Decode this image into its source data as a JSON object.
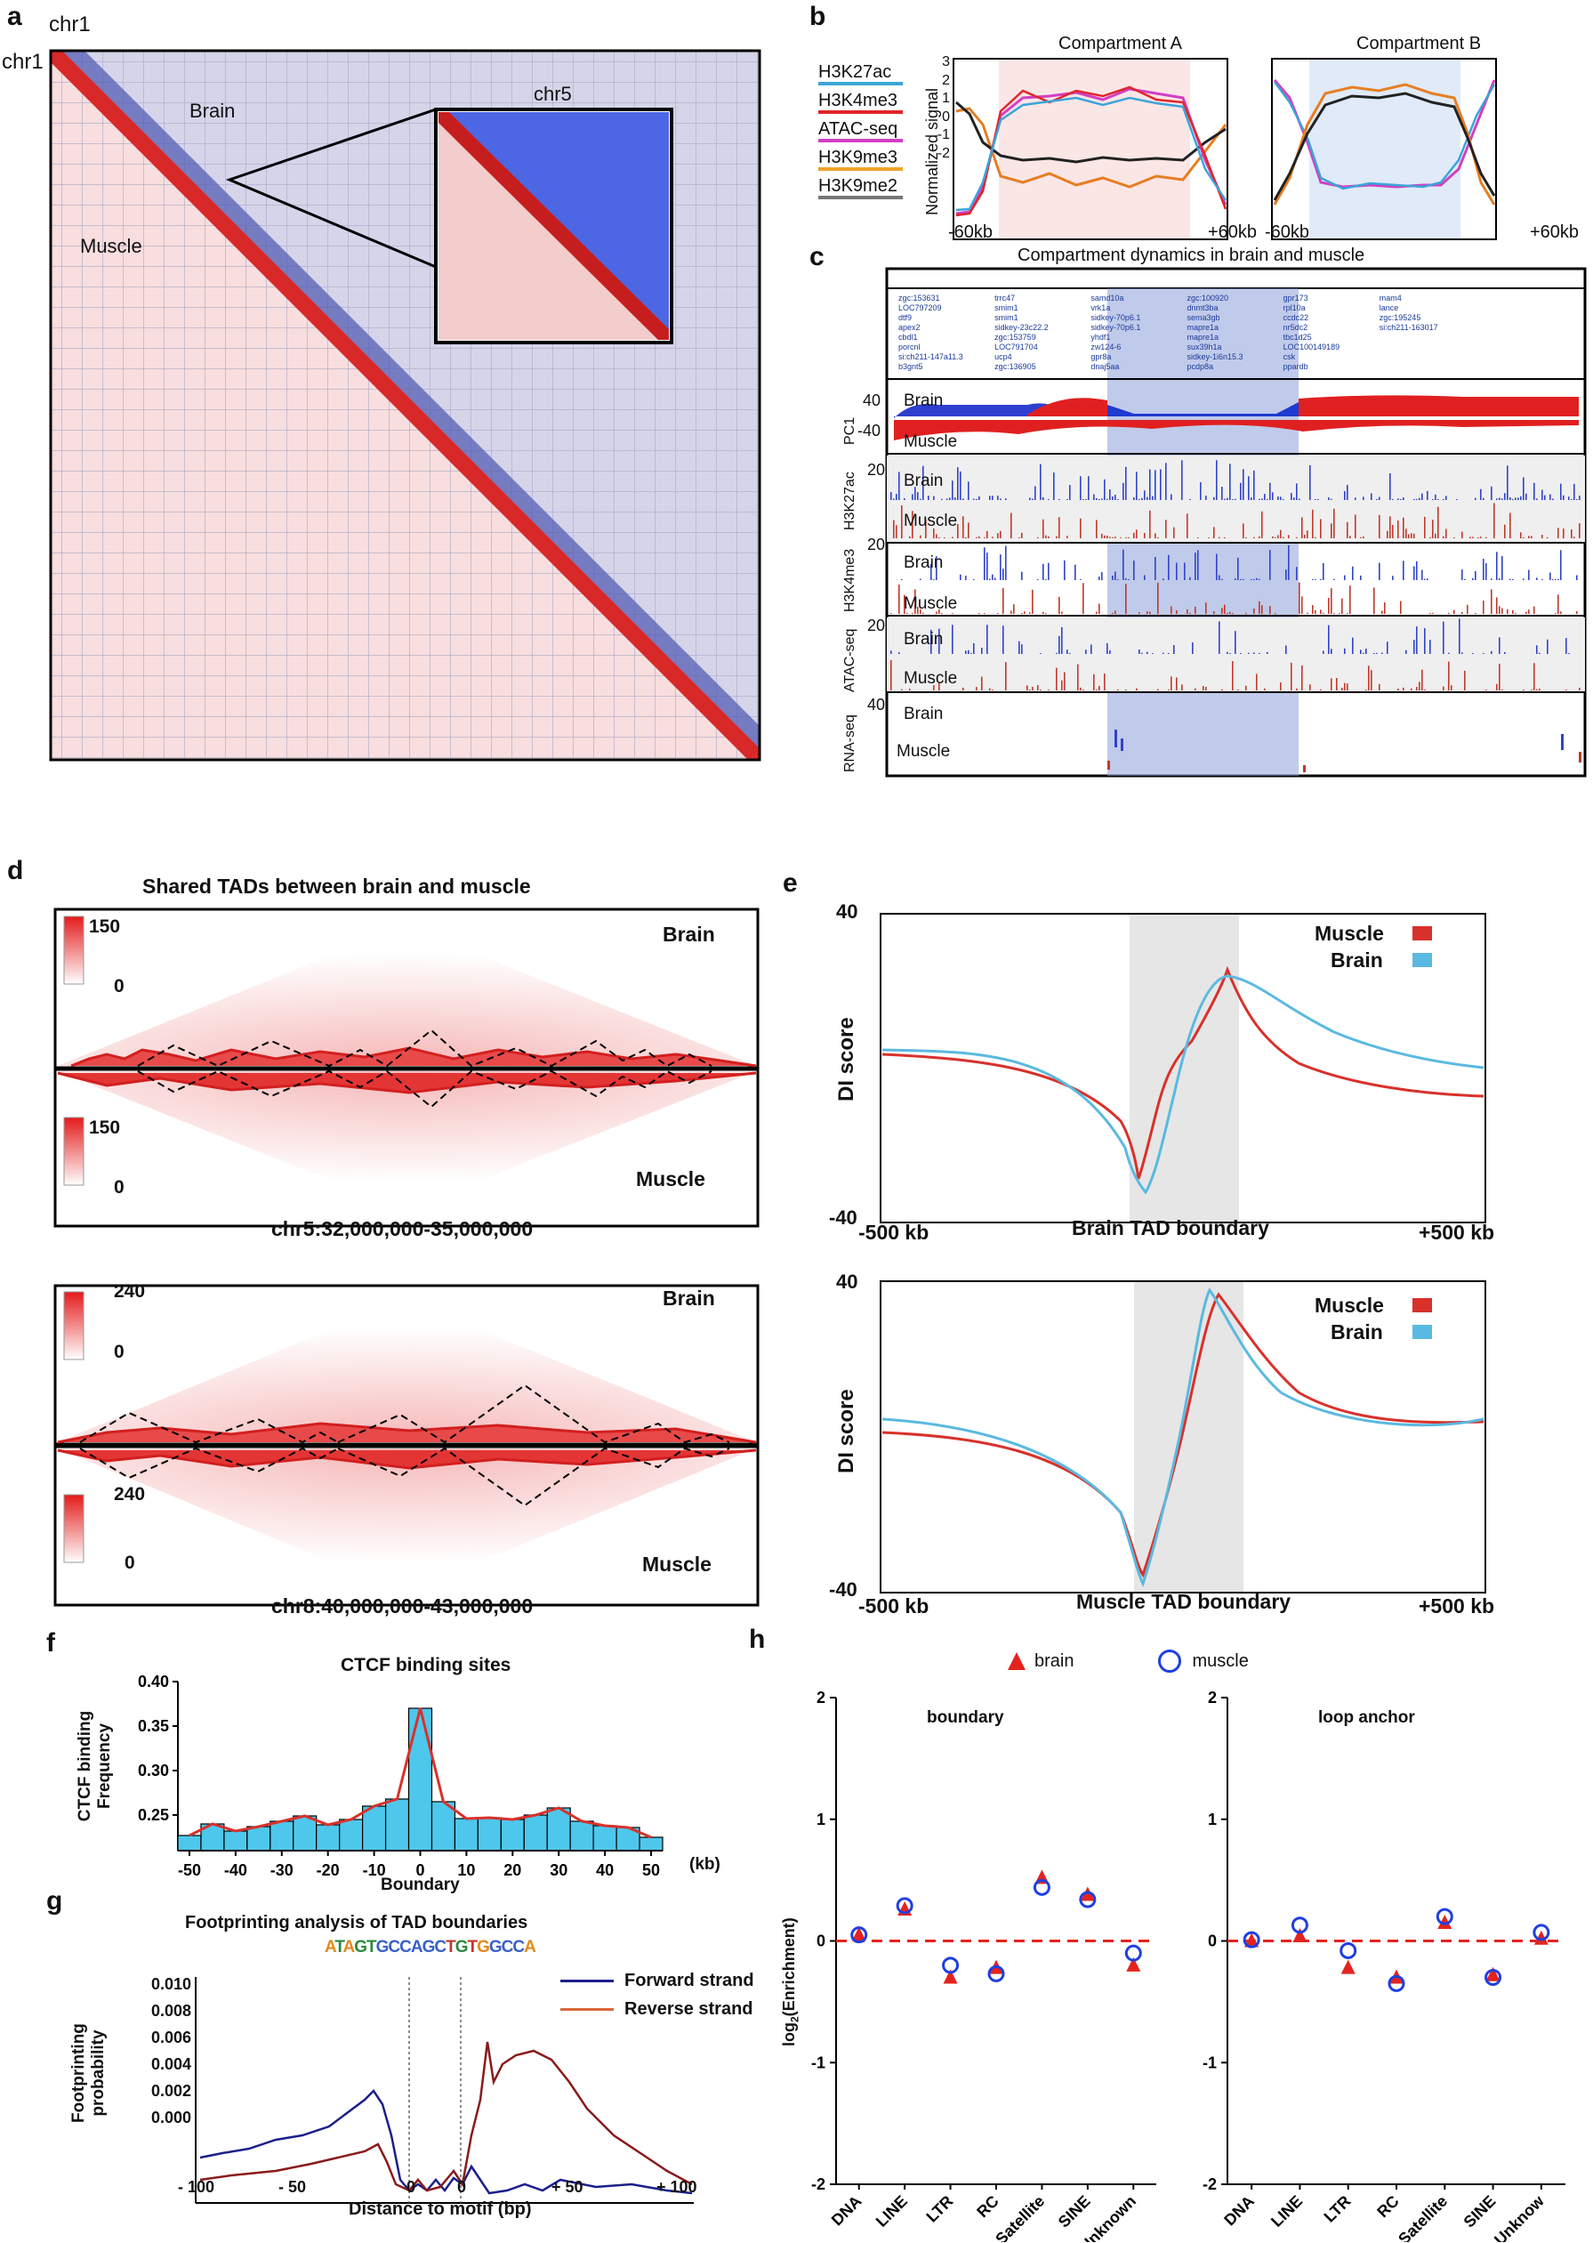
{
  "panels": {
    "a": {
      "label": "a",
      "chr_top": "chr1",
      "chr_left": "chr1",
      "brain": "Brain",
      "muscle": "Muscle",
      "inset": "chr5"
    },
    "b": {
      "label": "b",
      "compA": "Compartment A",
      "compB": "Compartment B",
      "ylabel": "Normalized signal",
      "yticks": [
        "3",
        "2",
        "1",
        "0",
        "-1",
        "-2"
      ],
      "xleft": "-60kb",
      "xright": "+60kb",
      "legend": [
        {
          "name": "H3K27ac",
          "color": "#3aa5d8"
        },
        {
          "name": "H3K4me3",
          "color": "#e0262b"
        },
        {
          "name": "ATAC-seq",
          "color": "#d23fc3"
        },
        {
          "name": "H3K9me3",
          "color": "#f0a32c"
        },
        {
          "name": "H3K9me2",
          "color": "#777777"
        }
      ]
    },
    "c": {
      "label": "c",
      "title": "Compartment dynamics in brain and muscle",
      "tracks": [
        {
          "ylabel": "PC1",
          "top": "40",
          "bottom": "-40",
          "brain": "Brain",
          "muscle": "Muscle"
        },
        {
          "ylabel": "H3K27ac",
          "top": "20",
          "brain": "Brain",
          "muscle": "Muscle"
        },
        {
          "ylabel": "H3K4me3",
          "top": "20",
          "brain": "Brain",
          "muscle": "Muscle"
        },
        {
          "ylabel": "ATAC-seq",
          "top": "20",
          "brain": "Brain",
          "muscle": "Muscle"
        },
        {
          "ylabel": "RNA-seq",
          "top": "40",
          "brain": "Brain",
          "muscle": "Muscle"
        }
      ],
      "genes": [
        "zgc:153631",
        "LOC797209",
        "dtf9",
        "apex2",
        "cbdl1",
        "porcnl",
        "si:ch211-147a11.3",
        "b3gnt5",
        "trrc47",
        "smim1",
        "smim1",
        "sidkey-23c22.2",
        "zgc:153759",
        "LOC791704",
        "ucp4",
        "zgc:136905",
        "samd10a",
        "vrk1a",
        "sidkey-70p6.1",
        "sidkey-70p6.1",
        "yhdf1",
        "zw124-6",
        "gpr8a",
        "dnaj5aa",
        "zgc:100920",
        "dnmt3ba",
        "sema3gb",
        "mapre1a",
        "mapre1a",
        "sux39h1a",
        "sidkey-1i6n15.3",
        "pcdp8a",
        "gpr173",
        "rpl10a",
        "ccdc22",
        "nr5dc2",
        "tbc1d25",
        "LOC100149189",
        "csk",
        "ppardb",
        "mam4",
        "lance",
        "zgc:195245",
        "si:ch211-163017"
      ]
    },
    "d": {
      "label": "d",
      "title": "Shared TADs between brain and muscle",
      "maps": [
        {
          "region": "chr5:32,000,000-35,000,000",
          "max": "150",
          "min": "0",
          "brain": "Brain",
          "muscle": "Muscle"
        },
        {
          "region": "chr8:40,000,000-43,000,000",
          "max": "240",
          "min": "0",
          "brain": "Brain",
          "muscle": "Muscle"
        }
      ]
    },
    "e": {
      "label": "e",
      "ylabel": "DI score",
      "legend": [
        {
          "name": "Muscle",
          "color": "#d8312b"
        },
        {
          "name": "Brain",
          "color": "#5ab9e0"
        }
      ],
      "plots": [
        {
          "xlabel": "Brain TAD boundary",
          "xleft": "-500 kb",
          "xright": "+500 kb",
          "ytop": "40",
          "ybottom": "-40"
        },
        {
          "xlabel": "Muscle TAD boundary",
          "xleft": "-500 kb",
          "xright": "+500 kb",
          "ytop": "40",
          "ybottom": "-40"
        }
      ]
    },
    "f": {
      "label": "f",
      "title": "CTCF binding sites",
      "ylabel1": "CTCF binding",
      "ylabel2": "Frequency",
      "xlabel": "Boundary",
      "xunit": "(kb)",
      "yticks": [
        "0.40",
        "0.35",
        "0.30",
        "0.25"
      ],
      "xticks": [
        "-50",
        "-40",
        "-30",
        "-20",
        "-10",
        "0",
        "10",
        "20",
        "30",
        "40",
        "50"
      ]
    },
    "g": {
      "label": "g",
      "title": "Footprinting analysis of TAD boundaries",
      "ylabel1": "Footprinting",
      "ylabel2": "probability",
      "xlabel": "Distance to motif (bp)",
      "yticks": [
        "0.010",
        "0.008",
        "0.006",
        "0.004",
        "0.002",
        "0.000"
      ],
      "xticks": [
        "- 100",
        "- 50",
        "0",
        "0",
        "+ 50",
        "+ 100"
      ],
      "legend": [
        {
          "name": "Forward strand",
          "color": "#1b1f8a"
        },
        {
          "name": "Reverse strand",
          "color": "#d9683a"
        }
      ]
    },
    "h": {
      "label": "h",
      "legend_brain": "brain",
      "legend_muscle": "muscle",
      "ylabel_main": "log",
      "ylabel_sub": "2",
      "ylabel_rest": "(Enrichment)",
      "yticks": [
        "2",
        "1",
        "0",
        "-1",
        "-2"
      ],
      "left_title": "boundary",
      "right_title": "loop anchor",
      "left_cats": [
        "DNA",
        "LINE",
        "LTR",
        "RC",
        "Satellite",
        "SINE",
        "Unknown"
      ],
      "right_cats": [
        "DNA",
        "LINE",
        "LTR",
        "RC",
        "Satellite",
        "SINE",
        "Unknow"
      ]
    }
  },
  "chart_data": [
    {
      "type": "bar",
      "title": "CTCF binding sites",
      "xlabel": "Boundary (kb)",
      "ylabel": "CTCF binding Frequency",
      "ylim": [
        0.21,
        0.4
      ],
      "categories": [
        "-50",
        "-45",
        "-40",
        "-35",
        "-30",
        "-25",
        "-20",
        "-15",
        "-10",
        "-5",
        "0",
        "5",
        "10",
        "15",
        "20",
        "25",
        "30",
        "35",
        "40",
        "45",
        "50"
      ],
      "values": [
        0.227,
        0.24,
        0.232,
        0.237,
        0.243,
        0.249,
        0.239,
        0.245,
        0.26,
        0.268,
        0.37,
        0.265,
        0.246,
        0.247,
        0.245,
        0.25,
        0.258,
        0.243,
        0.238,
        0.236,
        0.225
      ]
    },
    {
      "type": "scatter",
      "title": "boundary",
      "ylabel": "log2(Enrichment)",
      "ylim": [
        -2,
        2
      ],
      "categories": [
        "DNA",
        "LINE",
        "LTR",
        "RC",
        "Satellite",
        "SINE",
        "Unknown"
      ],
      "series": [
        {
          "name": "brain",
          "values": [
            0.05,
            0.26,
            -0.3,
            -0.22,
            0.52,
            0.38,
            -0.2
          ]
        },
        {
          "name": "muscle",
          "values": [
            0.05,
            0.29,
            -0.2,
            -0.27,
            0.44,
            0.34,
            -0.1
          ]
        }
      ]
    },
    {
      "type": "scatter",
      "title": "loop anchor",
      "ylabel": "log2(Enrichment)",
      "ylim": [
        -2,
        2
      ],
      "categories": [
        "DNA",
        "LINE",
        "LTR",
        "RC",
        "Satellite",
        "SINE",
        "Unknow"
      ],
      "series": [
        {
          "name": "brain",
          "values": [
            0.0,
            0.04,
            -0.22,
            -0.3,
            0.15,
            -0.28,
            0.02
          ]
        },
        {
          "name": "muscle",
          "values": [
            0.01,
            0.13,
            -0.08,
            -0.35,
            0.2,
            -0.3,
            0.07
          ]
        }
      ]
    }
  ]
}
